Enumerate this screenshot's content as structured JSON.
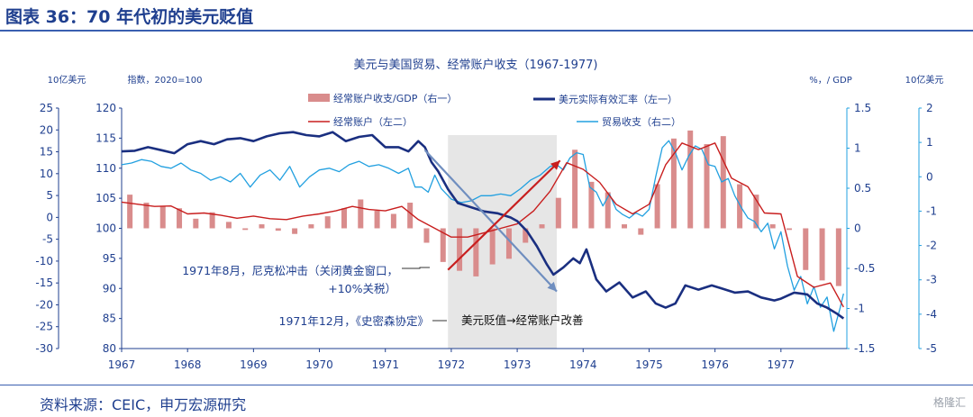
{
  "figure_title": "图表 36：70 年代初的美元贬值",
  "source_note": "资料来源：CEIC，申万宏源研究",
  "watermark": "格隆汇",
  "chart_data": {
    "type": "line",
    "title": "美元与美国贸易、经常账户收支（1967-1977)",
    "axes": {
      "outer_left": {
        "label": "10亿美元",
        "ticks": [
          "25",
          "20",
          "15",
          "10",
          "5",
          "0",
          "-5",
          "-10",
          "-15",
          "-20",
          "-25",
          "-30"
        ],
        "range": [
          -30,
          25
        ]
      },
      "inner_left": {
        "label": "指数，2020=100",
        "ticks": [
          "120",
          "115",
          "110",
          "105",
          "100",
          "95",
          "90",
          "85",
          "80"
        ],
        "range": [
          80,
          120
        ]
      },
      "inner_right": {
        "label": "%，/ GDP",
        "ticks": [
          "1.5",
          "1",
          "0.5",
          "0",
          "-0.5",
          "-1",
          "-1.5"
        ],
        "range": [
          -1.5,
          1.5
        ]
      },
      "outer_right": {
        "label": "10亿美元",
        "ticks": [
          "2",
          "1",
          "0",
          "-1",
          "-2",
          "-3",
          "-4",
          "-5"
        ],
        "range": [
          -5,
          2
        ]
      },
      "x": {
        "ticks": [
          "1967",
          "1968",
          "1969",
          "1970",
          "1971",
          "1972",
          "1973",
          "1974",
          "1975",
          "1976",
          "1977"
        ],
        "range": [
          1967,
          1978
        ]
      }
    },
    "legend": [
      {
        "label": "经常账户收支/GDP（右一）",
        "color": "#d98c8c",
        "kind": "bar"
      },
      {
        "label": "美元实际有效汇率（左一）",
        "color": "#1a2f80",
        "kind": "line"
      },
      {
        "label": "经常账户（左二）",
        "color": "#c81e1e",
        "kind": "line"
      },
      {
        "label": "贸易收支（右二）",
        "color": "#22a0e0",
        "kind": "line"
      }
    ],
    "annotations": {
      "nixon": "1971年8月，尼克松冲击（关闭黄金窗口，",
      "nixon2": "+10%关税）",
      "smithsonian": "1971年12月，《史密森协定》",
      "shaded": "美元贬值→经常账户改善"
    },
    "shaded_period": [
      1971.95,
      1973.6
    ],
    "series": [
      {
        "name": "经常账户收支/GDP（右一）",
        "axis": "inner_right",
        "x": [
          1967.0,
          1967.25,
          1967.5,
          1967.75,
          1968.0,
          1968.25,
          1968.5,
          1968.75,
          1969.0,
          1969.25,
          1969.5,
          1969.75,
          1970.0,
          1970.25,
          1970.5,
          1970.75,
          1971.0,
          1971.25,
          1971.5,
          1971.75,
          1972.0,
          1972.25,
          1972.5,
          1972.75,
          1973.0,
          1973.25,
          1973.5,
          1973.75,
          1974.0,
          1974.25,
          1974.5,
          1974.75,
          1975.0,
          1975.25,
          1975.5,
          1975.75,
          1976.0,
          1976.25,
          1976.5,
          1976.75,
          1977.0,
          1977.25,
          1977.5,
          1977.75
        ],
        "values": [
          0.42,
          0.32,
          0.28,
          0.25,
          0.12,
          0.2,
          0.08,
          -0.02,
          0.05,
          -0.03,
          -0.07,
          0.05,
          0.15,
          0.25,
          0.36,
          0.22,
          0.18,
          0.32,
          -0.18,
          -0.42,
          -0.53,
          -0.6,
          -0.45,
          -0.38,
          -0.18,
          0.05,
          0.38,
          0.98,
          0.58,
          0.45,
          0.05,
          -0.08,
          0.55,
          1.12,
          1.22,
          1.05,
          1.15,
          0.55,
          0.42,
          0.05,
          -0.02,
          -0.52,
          -0.65,
          -0.72
        ]
      },
      {
        "name": "美元实际有效汇率（左一）",
        "axis": "inner_left",
        "x": [
          1967.0,
          1967.2,
          1967.4,
          1967.6,
          1967.8,
          1968.0,
          1968.2,
          1968.4,
          1968.6,
          1968.8,
          1969.0,
          1969.2,
          1969.4,
          1969.6,
          1969.8,
          1970.0,
          1970.2,
          1970.4,
          1970.6,
          1970.8,
          1971.0,
          1971.2,
          1971.35,
          1971.5,
          1971.6,
          1971.7,
          1971.8,
          1971.95,
          1972.1,
          1972.3,
          1972.5,
          1972.7,
          1972.9,
          1973.0,
          1973.15,
          1973.3,
          1973.45,
          1973.55,
          1973.7,
          1973.85,
          1973.95,
          1974.05,
          1974.2,
          1974.35,
          1974.55,
          1974.75,
          1974.95,
          1975.1,
          1975.25,
          1975.4,
          1975.55,
          1975.75,
          1975.95,
          1976.1,
          1976.3,
          1976.5,
          1976.7,
          1976.9,
          1977.0,
          1977.2,
          1977.4,
          1977.55,
          1977.7,
          1977.85,
          1977.95
        ],
        "values": [
          112.8,
          112.9,
          113.5,
          113.0,
          112.5,
          114.0,
          114.5,
          114.0,
          114.8,
          115.0,
          114.5,
          115.3,
          115.8,
          116.0,
          115.5,
          115.3,
          116.0,
          114.5,
          115.2,
          115.5,
          113.5,
          113.5,
          112.8,
          114.5,
          113.5,
          111.0,
          109.5,
          106.5,
          104.2,
          103.5,
          102.8,
          102.5,
          101.8,
          101.2,
          99.5,
          97.0,
          94.0,
          92.3,
          93.5,
          95.0,
          94.2,
          96.5,
          91.5,
          89.5,
          91.0,
          88.5,
          89.5,
          87.5,
          86.8,
          87.5,
          90.5,
          89.8,
          90.5,
          90.0,
          89.3,
          89.5,
          88.5,
          88.0,
          88.3,
          89.3,
          89.0,
          87.5,
          86.8,
          85.8,
          85.0
        ]
      },
      {
        "name": "经常账户（左二）",
        "axis": "outer_left",
        "x": [
          1967.0,
          1967.25,
          1967.5,
          1967.75,
          1968.0,
          1968.25,
          1968.5,
          1968.75,
          1969.0,
          1969.25,
          1969.5,
          1969.75,
          1970.0,
          1970.25,
          1970.5,
          1970.75,
          1971.0,
          1971.25,
          1971.5,
          1971.75,
          1972.0,
          1972.25,
          1972.5,
          1972.75,
          1973.0,
          1973.25,
          1973.5,
          1973.75,
          1974.0,
          1974.25,
          1974.5,
          1974.75,
          1975.0,
          1975.25,
          1975.5,
          1975.75,
          1976.0,
          1976.25,
          1976.5,
          1976.75,
          1977.0,
          1977.25,
          1977.5,
          1977.75,
          1977.95
        ],
        "values": [
          3.5,
          3.0,
          2.5,
          2.6,
          0.8,
          1.0,
          0.5,
          -0.2,
          0.3,
          -0.3,
          -0.5,
          0.3,
          0.8,
          1.5,
          2.5,
          1.8,
          1.5,
          2.5,
          -0.5,
          -2.5,
          -4.5,
          -4.5,
          -3.5,
          -2.5,
          -1.5,
          1.5,
          6.0,
          12.5,
          11.0,
          8.0,
          3.0,
          0.8,
          3.0,
          12.0,
          17.0,
          15.5,
          17.0,
          9.0,
          7.0,
          1.0,
          0.8,
          -13.5,
          -16.0,
          -15.0,
          -20.5
        ]
      },
      {
        "name": "贸易收支（右二）",
        "axis": "outer_right",
        "x": [
          1967.0,
          1967.15,
          1967.3,
          1967.45,
          1967.6,
          1967.75,
          1967.9,
          1968.05,
          1968.2,
          1968.35,
          1968.5,
          1968.65,
          1968.8,
          1968.95,
          1969.1,
          1969.25,
          1969.4,
          1969.55,
          1969.7,
          1969.85,
          1970.0,
          1970.15,
          1970.3,
          1970.45,
          1970.6,
          1970.75,
          1970.9,
          1971.05,
          1971.2,
          1971.35,
          1971.45,
          1971.55,
          1971.65,
          1971.75,
          1971.85,
          1972.0,
          1972.15,
          1972.3,
          1972.45,
          1972.6,
          1972.75,
          1972.9,
          1973.05,
          1973.2,
          1973.35,
          1973.5,
          1973.6,
          1973.7,
          1973.8,
          1973.9,
          1974.0,
          1974.1,
          1974.2,
          1974.3,
          1974.4,
          1974.5,
          1974.6,
          1974.7,
          1974.8,
          1974.9,
          1975.0,
          1975.1,
          1975.2,
          1975.3,
          1975.4,
          1975.5,
          1975.6,
          1975.7,
          1975.8,
          1975.9,
          1976.0,
          1976.1,
          1976.2,
          1976.3,
          1976.4,
          1976.5,
          1976.6,
          1976.7,
          1976.8,
          1976.9,
          1977.0,
          1977.1,
          1977.2,
          1977.3,
          1977.4,
          1977.5,
          1977.6,
          1977.7,
          1977.8,
          1977.9,
          1977.95
        ],
        "values": [
          0.35,
          0.4,
          0.5,
          0.45,
          0.3,
          0.25,
          0.4,
          0.2,
          0.1,
          -0.1,
          0.0,
          -0.15,
          0.1,
          -0.3,
          0.05,
          0.2,
          -0.1,
          0.3,
          -0.3,
          0.0,
          0.2,
          0.25,
          0.15,
          0.35,
          0.45,
          0.3,
          0.35,
          0.25,
          0.1,
          0.25,
          -0.3,
          -0.3,
          -0.45,
          0.05,
          -0.35,
          -0.65,
          -0.75,
          -0.7,
          -0.55,
          -0.55,
          -0.5,
          -0.55,
          -0.35,
          -0.1,
          0.05,
          0.3,
          0.35,
          0.2,
          0.55,
          0.7,
          0.65,
          -0.3,
          -0.45,
          -0.85,
          -0.5,
          -0.95,
          -1.1,
          -1.2,
          -1.05,
          -1.15,
          -0.95,
          0.0,
          0.85,
          1.05,
          0.7,
          0.2,
          0.6,
          0.9,
          0.8,
          0.35,
          0.3,
          -0.15,
          -0.05,
          -0.55,
          -0.9,
          -1.2,
          -1.3,
          -1.6,
          -1.35,
          -2.1,
          -1.6,
          -2.6,
          -3.3,
          -2.9,
          -3.7,
          -3.2,
          -3.8,
          -3.5,
          -4.5,
          -3.8,
          -3.4
        ]
      }
    ],
    "arrows": [
      {
        "from": [
          1971.6,
          113.0
        ],
        "to": [
          1973.6,
          89.5
        ],
        "color": "#6f8ebf"
      },
      {
        "from": [
          1971.95,
          -12.0
        ],
        "to": [
          1973.65,
          13.0
        ],
        "color": "#c81e1e"
      }
    ]
  }
}
